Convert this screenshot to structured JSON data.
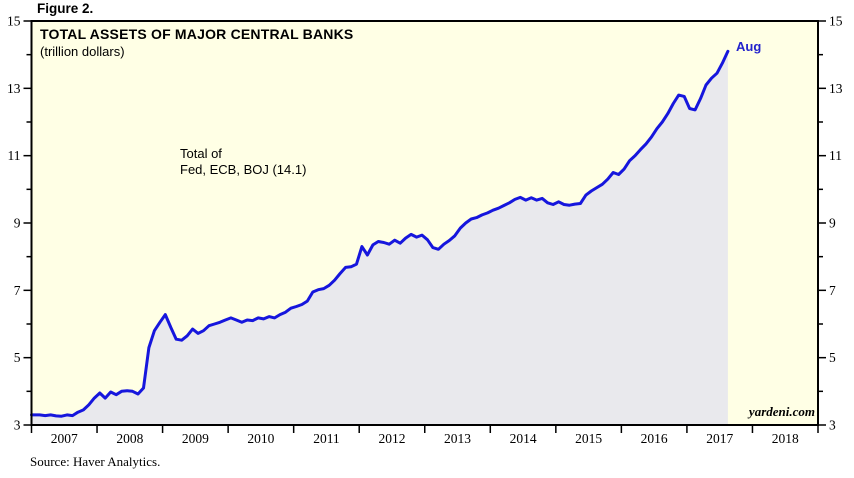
{
  "figure_label": "Figure 2.",
  "source_note": "Source: Haver Analytics.",
  "watermark": "yardeni.com",
  "chart_data": {
    "type": "area",
    "title": "TOTAL ASSETS OF MAJOR CENTRAL BANKS",
    "subtitle": "(trillion dollars)",
    "annotation": {
      "line1": "Total of",
      "line2": "Fed, ECB, BOJ (14.1)"
    },
    "end_label": "Aug",
    "last_value": 14.1,
    "frequency": "monthly",
    "x_start": "2007-01",
    "x_end": "2017-08",
    "x_tick_years": [
      "2007",
      "2008",
      "2009",
      "2010",
      "2011",
      "2012",
      "2013",
      "2014",
      "2015",
      "2016",
      "2017",
      "2018"
    ],
    "x_axis_year_span": [
      2007,
      2019
    ],
    "ylim": [
      3,
      15
    ],
    "y_ticks_labeled": [
      3,
      5,
      7,
      9,
      11,
      13,
      15
    ],
    "y_ticks_minor": [
      4,
      6,
      8,
      10,
      12,
      14
    ],
    "grid": false,
    "legend_position": "none",
    "series": [
      {
        "name": "Total assets of Fed, ECB, BOJ",
        "values": [
          3.3,
          3.3,
          3.28,
          3.3,
          3.27,
          3.26,
          3.3,
          3.28,
          3.38,
          3.45,
          3.6,
          3.8,
          3.95,
          3.8,
          3.98,
          3.9,
          4.0,
          4.02,
          4.0,
          3.92,
          4.1,
          5.3,
          5.8,
          6.05,
          6.28,
          5.9,
          5.55,
          5.52,
          5.65,
          5.85,
          5.72,
          5.8,
          5.95,
          6.0,
          6.05,
          6.12,
          6.18,
          6.12,
          6.05,
          6.12,
          6.1,
          6.18,
          6.15,
          6.22,
          6.18,
          6.28,
          6.35,
          6.47,
          6.52,
          6.58,
          6.68,
          6.95,
          7.02,
          7.05,
          7.15,
          7.3,
          7.5,
          7.68,
          7.7,
          7.78,
          8.3,
          8.05,
          8.35,
          8.45,
          8.42,
          8.37,
          8.49,
          8.4,
          8.55,
          8.66,
          8.58,
          8.64,
          8.5,
          8.27,
          8.22,
          8.37,
          8.48,
          8.62,
          8.85,
          9.0,
          9.12,
          9.16,
          9.24,
          9.3,
          9.38,
          9.44,
          9.52,
          9.6,
          9.7,
          9.76,
          9.68,
          9.75,
          9.68,
          9.73,
          9.6,
          9.55,
          9.63,
          9.55,
          9.53,
          9.56,
          9.58,
          9.83,
          9.95,
          10.05,
          10.15,
          10.3,
          10.5,
          10.44,
          10.6,
          10.85,
          11.0,
          11.18,
          11.35,
          11.55,
          11.8,
          12.0,
          12.25,
          12.55,
          12.8,
          12.76,
          12.4,
          12.36,
          12.7,
          13.1,
          13.3,
          13.45,
          13.75,
          14.1
        ]
      }
    ],
    "colors": {
      "line": "#1616dd",
      "area_fill": "#e9e9ed",
      "plot_background": "#ffffe5",
      "frame": "#000000",
      "end_label_text": "#2323cc"
    }
  }
}
